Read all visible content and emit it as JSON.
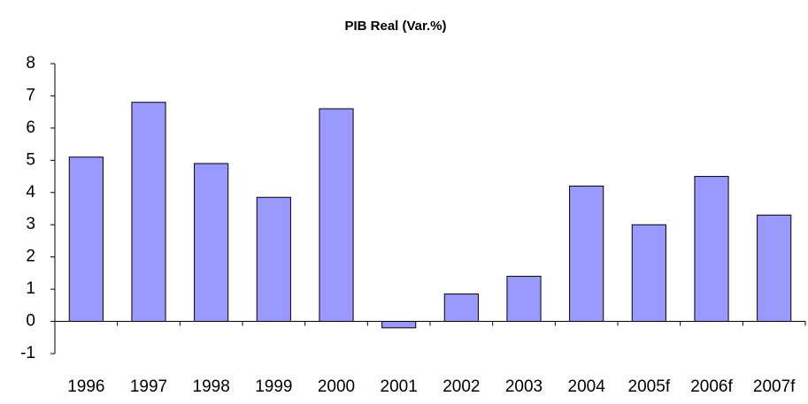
{
  "chart_data": {
    "type": "bar",
    "title": "PIB Real  (Var.%)",
    "categories": [
      "1996",
      "1997",
      "1998",
      "1999",
      "2000",
      "2001",
      "2002",
      "2003",
      "2004",
      "2005f",
      "2006f",
      "2007f"
    ],
    "values": [
      5.1,
      6.8,
      4.9,
      3.85,
      6.6,
      -0.2,
      0.85,
      1.4,
      4.2,
      3.0,
      4.5,
      3.3
    ],
    "color": "#9999ff",
    "ylim": [
      -1,
      8
    ],
    "yticks": [
      -1,
      0,
      1,
      2,
      3,
      4,
      5,
      6,
      7,
      8
    ],
    "grid": false
  }
}
